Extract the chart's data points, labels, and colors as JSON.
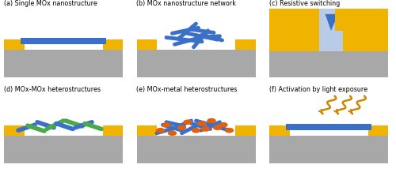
{
  "figsize": [
    5.0,
    2.18
  ],
  "dpi": 100,
  "bg_color": "#ffffff",
  "grey": "#a8a8a8",
  "yellow": "#f0b400",
  "blue": "#3a70c8",
  "light_blue": "#b8cce8",
  "green": "#4aaa4a",
  "orange": "#e06010",
  "dark_blue": "#2a50a0",
  "white": "#ffffff",
  "labels": [
    "(a) Single MOx nanostructure",
    "(b) MOx nanostructure network",
    "(c) Resistive switching",
    "(d) MOx-MOx heterostructures",
    "(e) MOx-metal heterostructures",
    "(f) Activation by light exposure"
  ],
  "label_fontsize": 5.8
}
